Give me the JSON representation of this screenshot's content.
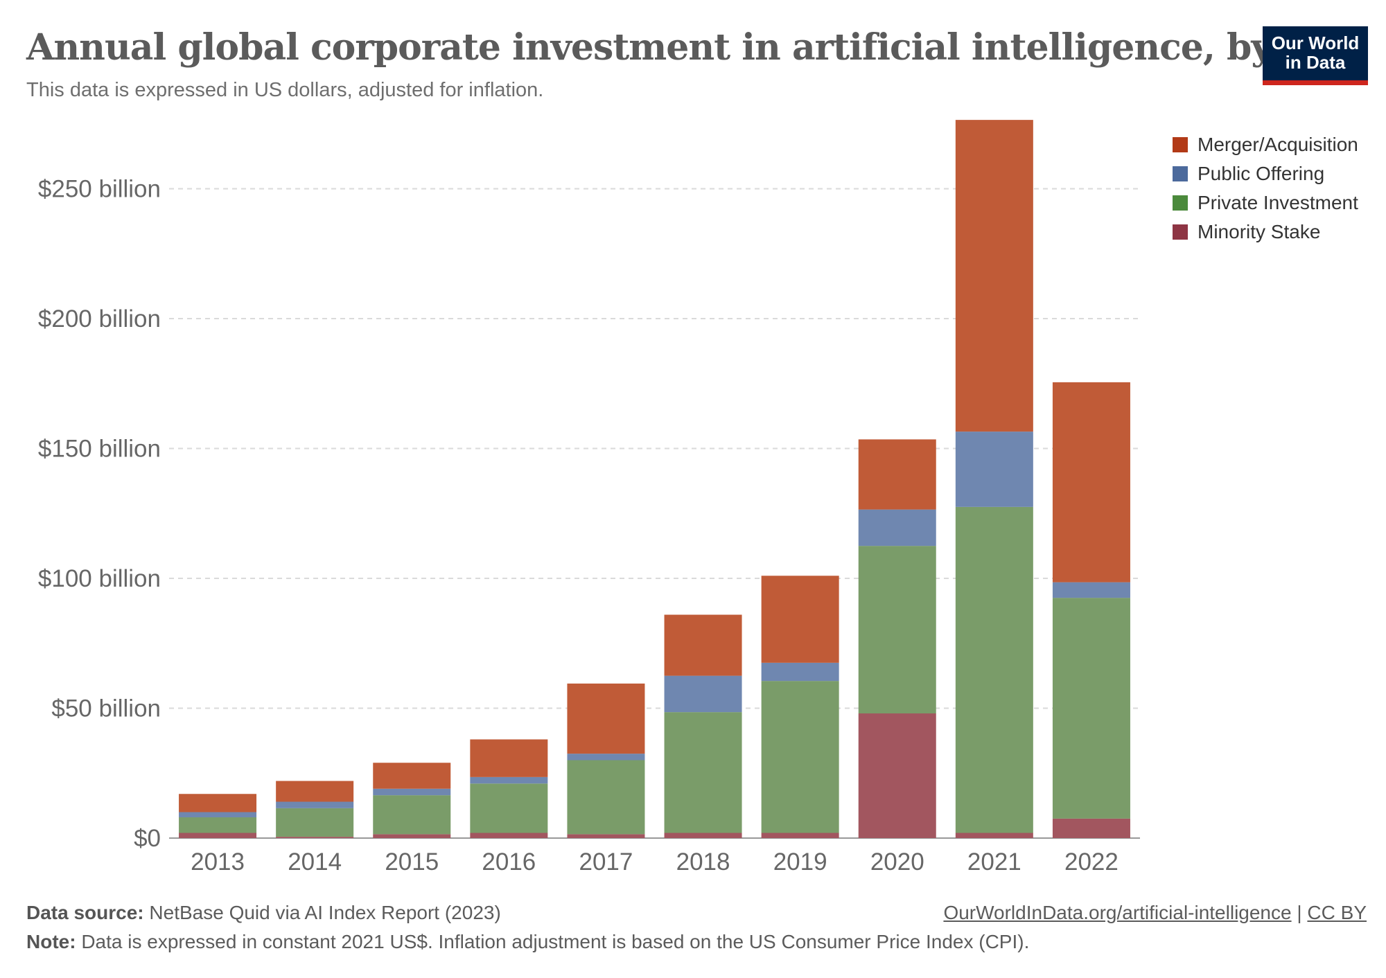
{
  "header": {
    "title": "Annual global corporate investment in artificial intelligence, by type",
    "subtitle": "This data is expressed in US dollars, adjusted for inflation.",
    "logo_line1": "Our World",
    "logo_line2": "in Data"
  },
  "footer": {
    "source_label": "Data source:",
    "source_text": "NetBase Quid via AI Index Report (2023)",
    "note_label": "Note:",
    "note_text": "Data is expressed in constant 2021 US$. Inflation adjustment is based on the US Consumer Price Index (CPI).",
    "link_text": "OurWorldInData.org/artificial-intelligence",
    "separator": "|",
    "license_text": "CC BY"
  },
  "chart_data": {
    "type": "bar",
    "stacked": true,
    "categories": [
      "2013",
      "2014",
      "2015",
      "2016",
      "2017",
      "2018",
      "2019",
      "2020",
      "2021",
      "2022"
    ],
    "series": [
      {
        "name": "Minority Stake",
        "color": "#a2565f",
        "values": [
          2,
          0.5,
          1.5,
          2,
          1.5,
          2,
          2,
          48,
          2,
          7.5
        ]
      },
      {
        "name": "Private Investment",
        "color": "#7a9c69",
        "values": [
          6,
          11,
          15,
          19,
          28.5,
          46.5,
          58.5,
          64.5,
          125.5,
          85
        ]
      },
      {
        "name": "Public Offering",
        "color": "#6f87b0",
        "values": [
          2,
          2.5,
          2.5,
          2.5,
          2.5,
          14,
          7,
          14,
          29,
          6
        ]
      },
      {
        "name": "Merger/Acquisition",
        "color": "#c05b37",
        "values": [
          7,
          8,
          10,
          14.5,
          27,
          23.5,
          33.5,
          27,
          120,
          77
        ]
      }
    ],
    "legend_order": [
      "Merger/Acquisition",
      "Public Offering",
      "Private Investment",
      "Minority Stake"
    ],
    "legend_colors": [
      "#b23a17",
      "#4c6a9c",
      "#4b8a3c",
      "#8e3544"
    ],
    "ylim": [
      0,
      280
    ],
    "yticks": [
      {
        "value": 0,
        "label": "$0"
      },
      {
        "value": 50,
        "label": "$50 billion"
      },
      {
        "value": 100,
        "label": "$100 billion"
      },
      {
        "value": 150,
        "label": "$150 billion"
      },
      {
        "value": 200,
        "label": "$200 billion"
      },
      {
        "value": 250,
        "label": "$250 billion"
      }
    ],
    "grid": true,
    "legend_position": "top-right"
  }
}
